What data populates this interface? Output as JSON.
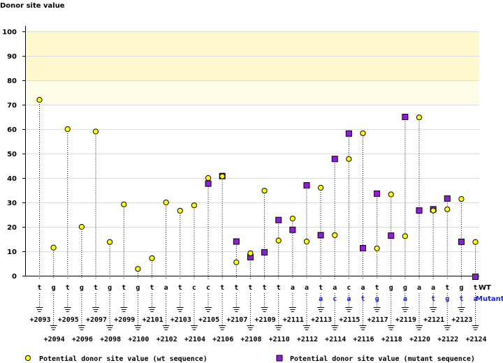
{
  "chart_data": {
    "type": "scatter",
    "ylabel": "Donor site value",
    "ylim": [
      0,
      100
    ],
    "yticks": [
      0,
      10,
      20,
      30,
      40,
      50,
      60,
      70,
      80,
      90,
      100
    ],
    "highlight_bands": [
      {
        "from": 80,
        "to": 100,
        "color": "#fff8cc"
      },
      {
        "from": 70,
        "to": 80,
        "color": "#fffde8"
      }
    ],
    "row_labels": {
      "wt": "WT",
      "mutant": "Mutant"
    },
    "positions": [
      "+2093",
      "+2094",
      "+2095",
      "+2096",
      "+2097",
      "+2098",
      "+2099",
      "+2100",
      "+2101",
      "+2102",
      "+2103",
      "+2104",
      "+2105",
      "+2106",
      "+2107",
      "+2108",
      "+2109",
      "+2110",
      "+2111",
      "+2112",
      "+2113",
      "+2114",
      "+2115",
      "+2116",
      "+2117",
      "+2118",
      "+2119",
      "+2120",
      "+2121",
      "+2122",
      "+2123",
      "+2124"
    ],
    "wt_sequence": [
      "t",
      "g",
      "t",
      "g",
      "t",
      "g",
      "t",
      "g",
      "t",
      "a",
      "t",
      "c",
      "c",
      "t",
      "t",
      "t",
      "t",
      "t",
      "a",
      "a",
      "t",
      "a",
      "c",
      "a",
      "t",
      "g",
      "g",
      "a",
      "a",
      "t",
      "g",
      "t"
    ],
    "mutant_sequence": [
      "",
      "",
      "",
      "",
      "",
      "",
      "",
      "",
      "",
      "",
      "",
      "",
      "",
      "",
      "",
      "",
      "",
      "",
      "",
      "",
      "a",
      "c",
      "a",
      "t",
      "g",
      "",
      "a",
      "",
      "t",
      "g",
      "t",
      "a"
    ],
    "series": [
      {
        "name": "Potential donor site value (wt sequence)",
        "color": "#ffff00",
        "marker": "circle",
        "values": [
          72,
          11.5,
          60,
          20,
          59,
          13.8,
          29.2,
          2.8,
          7.2,
          30,
          26.6,
          28.8,
          40,
          40.7,
          5.5,
          9.2,
          34.8,
          14.4,
          23.4,
          14,
          36,
          16.6,
          47.8,
          58.3,
          11.2,
          33.3,
          16.2,
          64.8,
          26.7,
          27.2,
          31.4,
          13.8
        ]
      },
      {
        "name": "Potential donor site value (mutant sequence)",
        "color": "#8e1fd6",
        "marker": "square",
        "values": [
          null,
          null,
          null,
          null,
          null,
          null,
          null,
          null,
          null,
          null,
          null,
          null,
          37.7,
          40.8,
          14,
          7.6,
          9.6,
          22.8,
          18.8,
          37,
          16.6,
          47.8,
          58.2,
          11.3,
          33.6,
          16.4,
          65,
          26.7,
          27.2,
          31.6,
          13.9,
          -0.4
        ]
      }
    ],
    "legend": [
      {
        "label": "Potential donor site value (wt sequence)",
        "marker": "circle",
        "color": "#ffff00"
      },
      {
        "label": "Potential donor site value (mutant sequence)",
        "marker": "square",
        "color": "#8e1fd6"
      }
    ]
  }
}
